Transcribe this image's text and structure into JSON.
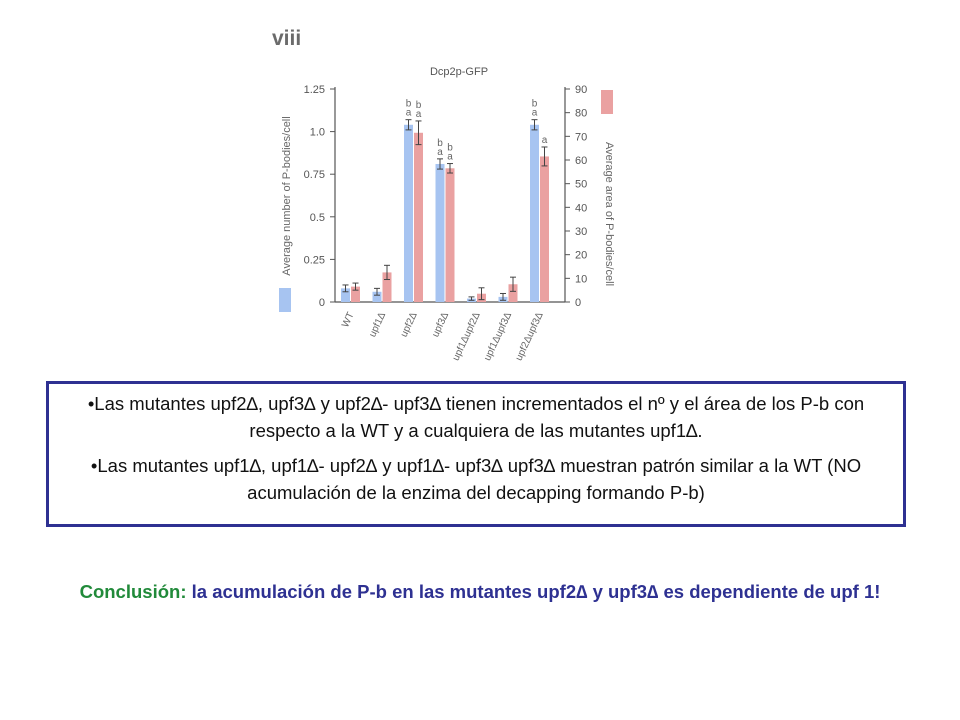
{
  "panel_label": "viii",
  "chart_data": {
    "type": "bar",
    "title": "Dcp2p-GFP",
    "categories": [
      "WT",
      "upf1Δ",
      "upf2Δ",
      "upf3Δ",
      "upf1Δupf2Δ",
      "upf1Δupf3Δ",
      "upf2Δupf3Δ"
    ],
    "series": [
      {
        "name": "Average number of P-bodies/cell",
        "axis": "left",
        "color": "#a7c4f1",
        "values": [
          0.08,
          0.06,
          1.04,
          0.81,
          0.02,
          0.03,
          1.04
        ],
        "errors": [
          0.02,
          0.02,
          0.03,
          0.03,
          0.01,
          0.02,
          0.03
        ]
      },
      {
        "name": "Average area of P-bodies/cell",
        "axis": "right",
        "color": "#eaa1a1",
        "values": [
          6.5,
          12.5,
          71.5,
          56.5,
          3.5,
          7.5,
          61.5
        ],
        "errors": [
          1.5,
          3.0,
          5.0,
          2.0,
          2.5,
          3.0,
          4.0
        ]
      }
    ],
    "left_axis": {
      "label": "Average number of P-bodies/cell",
      "ylim": [
        0,
        1.25
      ],
      "ticks": [
        0,
        0.25,
        0.5,
        0.75,
        1.0,
        1.25
      ],
      "tick_labels": [
        "0",
        "0.25",
        "0.5",
        "0.75",
        "1.0",
        "1.25"
      ]
    },
    "right_axis": {
      "label": "Average area of P-bodies/cell",
      "ylim": [
        0,
        90
      ],
      "ticks": [
        0,
        10,
        20,
        30,
        40,
        50,
        60,
        70,
        80,
        90
      ],
      "tick_labels": [
        "0",
        "10",
        "20",
        "30",
        "40",
        "50",
        "60",
        "70",
        "80",
        "90"
      ]
    },
    "significance": [
      {
        "category": 2,
        "series": 0,
        "lines": [
          "b",
          "a"
        ]
      },
      {
        "category": 2,
        "series": 1,
        "lines": [
          "b",
          "a"
        ]
      },
      {
        "category": 3,
        "series": 0,
        "lines": [
          "b",
          "a"
        ]
      },
      {
        "category": 3,
        "series": 1,
        "lines": [
          "b",
          "a"
        ]
      },
      {
        "category": 6,
        "series": 0,
        "lines": [
          "b",
          "a"
        ]
      },
      {
        "category": 6,
        "series": 1,
        "lines": [
          "a"
        ]
      }
    ]
  },
  "info_box": {
    "bullet1": "•Las mutantes upf2∆, upf3∆ y upf2∆- upf3∆ tienen incrementados el nº y el área de los P-b con respecto a la WT y a cualquiera de las mutantes upf1∆.",
    "bullet2": "•Las mutantes upf1∆, upf1∆- upf2∆ y upf1∆- upf3∆ upf3∆ muestran patrón similar a la WT (NO acumulación de la enzima del decapping formando P-b)"
  },
  "conclusion": {
    "lead": "Conclusión:",
    "text": " la acumulación de P-b en las mutantes upf2∆ y upf3∆ es dependiente de upf 1!"
  }
}
